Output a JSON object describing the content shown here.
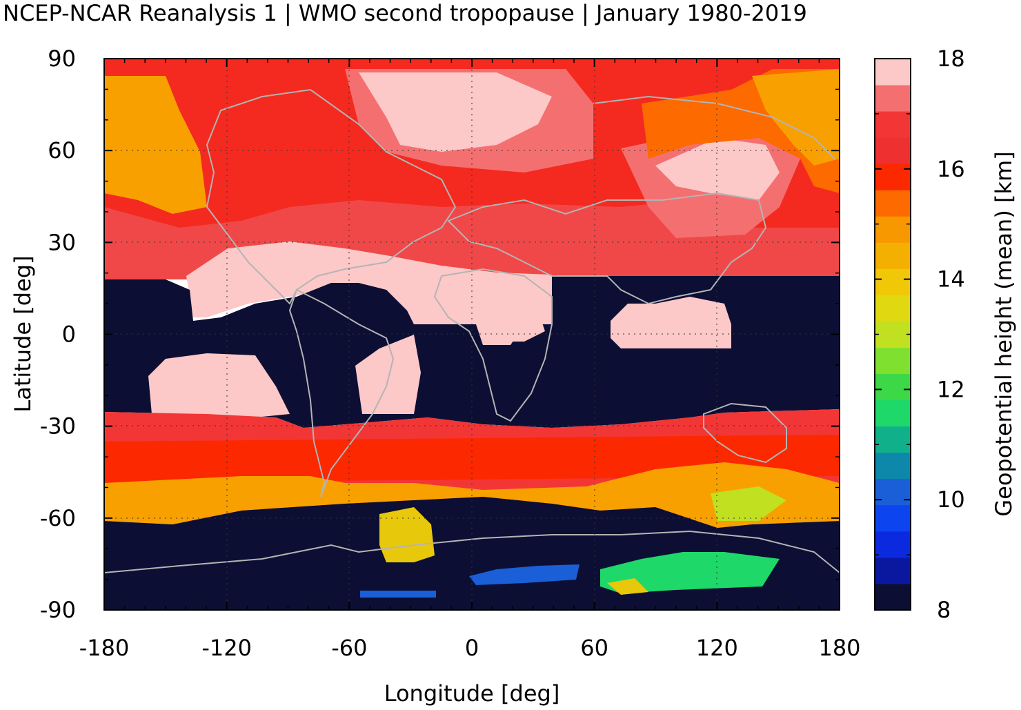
{
  "title": "NCEP-NCAR Reanalysis 1 | WMO second tropopause | January 1980-2019",
  "map": {
    "xlabel": "Longitude [deg]",
    "ylabel": "Latitude [deg]",
    "xlim": [
      -180,
      180
    ],
    "ylim": [
      -90,
      90
    ],
    "xticks": [
      "-180",
      "-120",
      "-60",
      "0",
      "60",
      "120",
      "180"
    ],
    "yticks": [
      "90",
      "60",
      "30",
      "0",
      "-30",
      "-60",
      "-90"
    ],
    "grid": "dotted",
    "coastline_color": "#b4b4b4",
    "background_no_data_color": "#0c0f33"
  },
  "colorbar": {
    "label": "Geopotential height (mean) [km]",
    "ticks": [
      "18",
      "16",
      "14",
      "12",
      "10",
      "8"
    ],
    "range_km": [
      8,
      18
    ],
    "colors": [
      "#0c0f33",
      "#0a18a0",
      "#0b2ae0",
      "#0c44f0",
      "#1a5fd8",
      "#0e88aa",
      "#10b08a",
      "#1ed86a",
      "#3cd848",
      "#80e030",
      "#c0e020",
      "#e0d810",
      "#f0c808",
      "#f4b000",
      "#f89800",
      "#fc6a00",
      "#fc2800",
      "#ee3030",
      "#f23636",
      "#f47070",
      "#fcc8c8"
    ]
  },
  "regions": {
    "northern_high_troposphere": "above 20N, 16-18 km",
    "tropical_no_second_tropopause": "20N to 30S mostly no data",
    "southern_midlatitudes": "30S to 60S, 15-17 km",
    "antarctic": "south of 60S mostly no data, isolated 10-14 km patches"
  }
}
